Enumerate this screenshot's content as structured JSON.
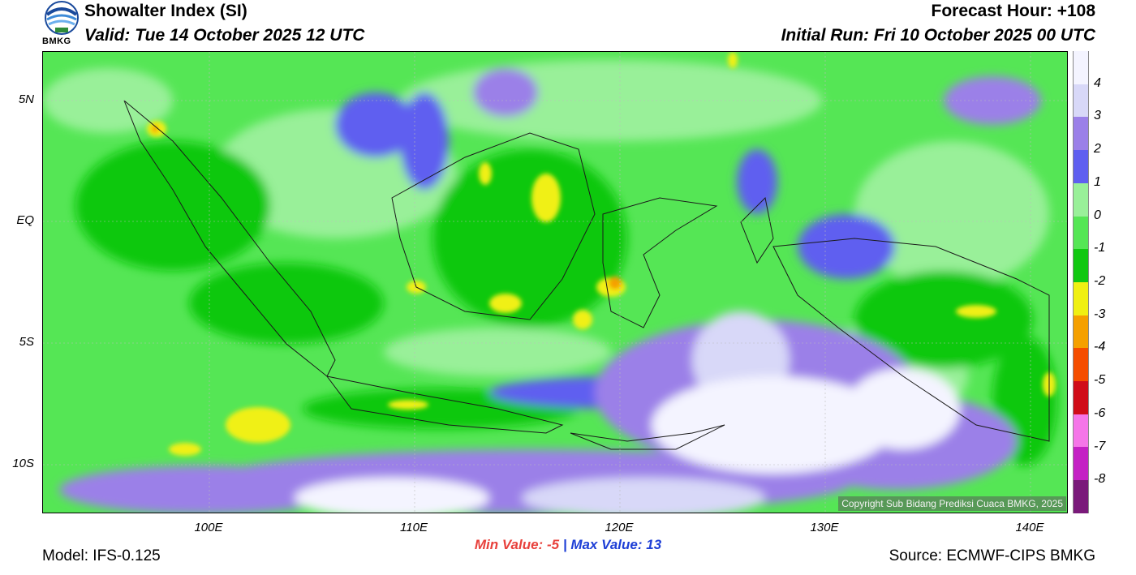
{
  "header": {
    "title": "Showalter Index (SI)",
    "valid": "Valid: Tue 14 October 2025 12 UTC",
    "forecast_hour": "Forecast Hour: +108",
    "initial_run": "Initial Run: Fri 10 October 2025 00 UTC"
  },
  "logo": {
    "label": "BMKG"
  },
  "axes": {
    "lat_labels": [
      "5N",
      "EQ",
      "5S",
      "10S"
    ],
    "lon_labels": [
      "100E",
      "110E",
      "120E",
      "130E",
      "140E"
    ]
  },
  "colorbar": {
    "labels": [
      "4",
      "3",
      "2",
      "1",
      "0",
      "-1",
      "-2",
      "-3",
      "-4",
      "-5",
      "-6",
      "-7",
      "-8"
    ],
    "colors": [
      "#f4f4ff",
      "#d8d8f8",
      "#9b80e8",
      "#5f5ff0",
      "#99f099",
      "#55e655",
      "#11c811",
      "#f0f012",
      "#f5a000",
      "#f54d00",
      "#d00c18",
      "#f576e8",
      "#c421c4",
      "#7a1a7a"
    ]
  },
  "stats": {
    "min_label": "Min Value:",
    "min_value": "-5",
    "separator": "|",
    "max_label": "Max Value:",
    "max_value": "13"
  },
  "footer": {
    "model": "Model: IFS-0.125",
    "source": "Source: ECMWF-CIPS BMKG",
    "copyright": "Copyright Sub Bidang Prediksi Cuaca BMKG, 2025"
  }
}
